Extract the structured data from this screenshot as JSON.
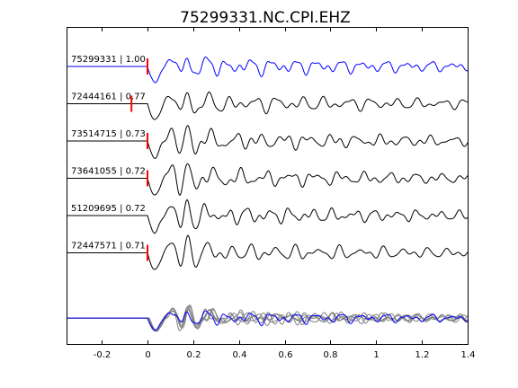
{
  "chart_data": {
    "type": "line",
    "title": "75299331.NC.CPI.EHZ",
    "xlabel": "",
    "ylabel": "",
    "xlim": [
      -0.35,
      1.4
    ],
    "xticks": [
      {
        "value": -0.2,
        "label": "-0.2"
      },
      {
        "value": 0,
        "label": "0"
      },
      {
        "value": 0.2,
        "label": "0.2"
      },
      {
        "value": 0.4,
        "label": "0.4"
      },
      {
        "value": 0.6,
        "label": "0.6"
      },
      {
        "value": 0.8,
        "label": "0.8"
      },
      {
        "value": 1,
        "label": "1"
      },
      {
        "value": 1.2,
        "label": "1.2"
      },
      {
        "value": 1.4,
        "label": "1.4"
      }
    ],
    "grid": false,
    "series": [
      {
        "name": "75299331 | 1.00",
        "pick": 0.0,
        "color": "#0000ff",
        "seed": 1,
        "pre": 0.0
      },
      {
        "name": "72444161 | 0.77",
        "pick": -0.07,
        "color": "#000000",
        "seed": 2,
        "pre": 0.0
      },
      {
        "name": "73514715 | 0.73",
        "pick": 0.0,
        "color": "#000000",
        "seed": 3,
        "pre": 0.0
      },
      {
        "name": "73641055 | 0.72",
        "pick": 0.0,
        "color": "#000000",
        "seed": 4,
        "pre": 0.0
      },
      {
        "name": "51209695 | 0.72",
        "pick": null,
        "color": "#000000",
        "seed": 5,
        "pre": 0.0
      },
      {
        "name": "72447571 | 0.71",
        "pick": 0.0,
        "color": "#000000",
        "seed": 6,
        "pre": 0.0
      }
    ],
    "stack": {
      "label": "",
      "colors": [
        "#808080",
        "#0000ff"
      ]
    },
    "pick_color": "#ff0000"
  }
}
